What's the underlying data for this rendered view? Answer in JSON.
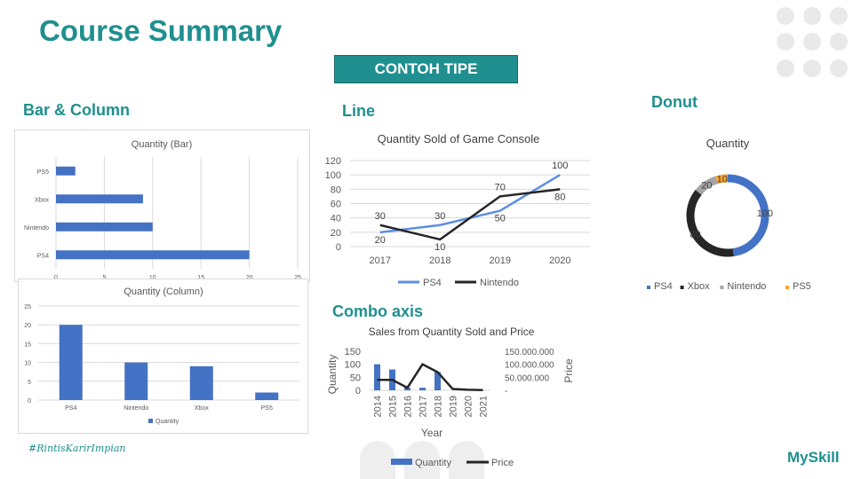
{
  "page": {
    "title": "Course Summary",
    "badge": "CONTOH TIPE",
    "sections": {
      "bar": "Bar & Column",
      "line": "Line",
      "donut": "Donut",
      "combo": "Combo axis"
    },
    "hashtag": "#RintisKarirImpian",
    "brand": "MySkill"
  },
  "colors": {
    "teal": "#1f8f8f",
    "blue": "#4472c4",
    "lineBlue": "#5b8fe3",
    "black": "#262626",
    "gray": "#a5a5a5",
    "orange": "#ffa32b"
  },
  "chart_data": [
    {
      "id": "bar",
      "type": "bar",
      "orientation": "horizontal",
      "title": "Quantity (Bar)",
      "categories": [
        "PS4",
        "Nintendo",
        "Xbox",
        "PS5"
      ],
      "values": [
        20,
        10,
        9,
        2
      ],
      "xlim": [
        0,
        25
      ],
      "xticks": [
        "0",
        "5",
        "10",
        "15",
        "20",
        "25"
      ],
      "grid": true
    },
    {
      "id": "column",
      "type": "bar",
      "title": "Quantity (Column)",
      "categories": [
        "PS4",
        "Nintendo",
        "Xbox",
        "PS5"
      ],
      "values": [
        20,
        10,
        9,
        2
      ],
      "ylim": [
        0,
        25
      ],
      "yticks": [
        "0",
        "5",
        "10",
        "15",
        "20",
        "25"
      ],
      "series": [
        {
          "name": "Quantity",
          "values": [
            20,
            10,
            9,
            2
          ]
        }
      ],
      "legend": "bottom",
      "grid": true
    },
    {
      "id": "line",
      "type": "line",
      "title": "Quantity Sold of Game Console",
      "categories": [
        "2017",
        "2018",
        "2019",
        "2020"
      ],
      "ylim": [
        0,
        120
      ],
      "yticks": [
        "0",
        "20",
        "40",
        "60",
        "80",
        "100",
        "120"
      ],
      "series": [
        {
          "name": "PS4",
          "values": [
            20,
            30,
            50,
            100
          ],
          "labels": [
            "20",
            "30",
            "50",
            "100"
          ]
        },
        {
          "name": "Nintendo",
          "values": [
            30,
            10,
            70,
            80
          ],
          "labels": [
            "30",
            "10",
            "70",
            "80"
          ]
        }
      ],
      "legend": "bottom",
      "grid": true
    },
    {
      "id": "donut",
      "type": "pie",
      "variant": "donut",
      "title": "Quantity",
      "categories": [
        "PS4",
        "Xbox",
        "Nintendo",
        "PS5"
      ],
      "values": [
        100,
        80,
        20,
        10
      ],
      "labels": [
        "100",
        "80",
        "20",
        "10"
      ],
      "legend": "bottom"
    },
    {
      "id": "combo",
      "type": "bar",
      "variant": "combo bar + line, secondary axis",
      "title": "Sales from Quantity Sold and Price",
      "xlabel": "Year",
      "ylabel": "Quantity",
      "y2label": "Price",
      "categories": [
        "2014",
        "2015",
        "2016",
        "2017",
        "2018",
        "2019",
        "2020",
        "2021"
      ],
      "ylim": [
        0,
        150
      ],
      "yticks": [
        "0",
        "50",
        "100",
        "150"
      ],
      "y2lim": [
        0,
        150000000
      ],
      "y2ticks": [
        "-",
        "50.000.000",
        "100.000.000",
        "150.000.000"
      ],
      "series": [
        {
          "name": "Quantity",
          "values": [
            100,
            80,
            10,
            10,
            70,
            0,
            0,
            0
          ]
        },
        {
          "name": "Price",
          "values": [
            40000000,
            40000000,
            10000000,
            100000000,
            70000000,
            5000000,
            2000000,
            1000000
          ]
        }
      ],
      "legend": "bottom"
    }
  ]
}
